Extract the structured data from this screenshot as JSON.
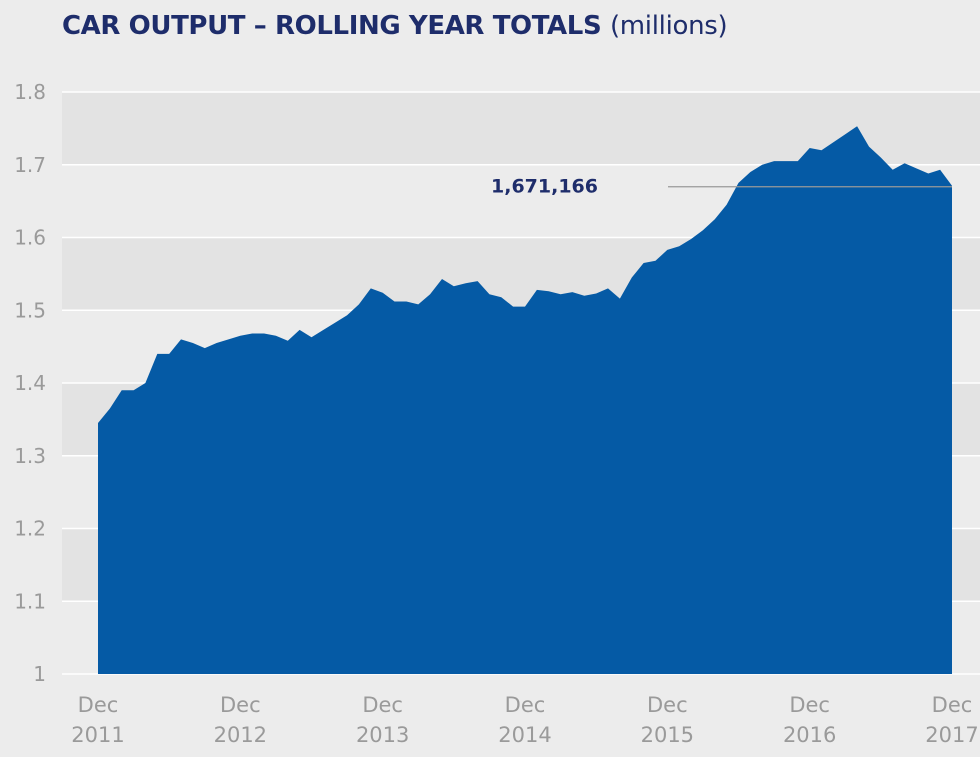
{
  "header": {
    "title": "CAR OUTPUT – ROLLING YEAR TOTALS",
    "unit": "(millions)"
  },
  "colors": {
    "area_fill": "#055aa5",
    "title": "#1e2d6b",
    "tick_text": "#9a9a9a",
    "band_dark": "#e3e3e3",
    "band_light": "#ececec",
    "grid": "#ffffff",
    "annotation_line": "#9a9a9a"
  },
  "chart_data": {
    "type": "area",
    "title": "CAR OUTPUT – ROLLING YEAR TOTALS",
    "unit": "millions",
    "xlabel": "",
    "ylabel": "",
    "ylim": [
      1,
      1.8
    ],
    "yticks": [
      1,
      1.1,
      1.2,
      1.3,
      1.4,
      1.5,
      1.6,
      1.7,
      1.8
    ],
    "ytick_labels": [
      "1",
      "1.1",
      "1.2",
      "1.3",
      "1.4",
      "1.5",
      "1.6",
      "1.7",
      "1.8"
    ],
    "xlim": [
      0,
      72
    ],
    "xticks": [
      {
        "x": 0,
        "line1": "Dec",
        "line2": "2011"
      },
      {
        "x": 12,
        "line1": "Dec",
        "line2": "2012"
      },
      {
        "x": 24,
        "line1": "Dec",
        "line2": "2013"
      },
      {
        "x": 36,
        "line1": "Dec",
        "line2": "2014"
      },
      {
        "x": 48,
        "line1": "Dec",
        "line2": "2015"
      },
      {
        "x": 60,
        "line1": "Dec",
        "line2": "2016"
      },
      {
        "x": 72,
        "line1": "Dec",
        "line2": "2017"
      }
    ],
    "grid": true,
    "background": "alternating horizontal bands",
    "series": [
      {
        "x": [
          0,
          1,
          2,
          3,
          4,
          5,
          6,
          7,
          8,
          9,
          10,
          11,
          12,
          13,
          14,
          15,
          16,
          17,
          18,
          19,
          20,
          21,
          22,
          23,
          24,
          25,
          26,
          27,
          28,
          29,
          30,
          31,
          32,
          33,
          34,
          35,
          36,
          37,
          38,
          39,
          40,
          41,
          42,
          43,
          44,
          45,
          46,
          47,
          48,
          49,
          50,
          51,
          52,
          53,
          54,
          55,
          56,
          57,
          58,
          59,
          60,
          61,
          62,
          63,
          64,
          65,
          66,
          67,
          68,
          69,
          70,
          71,
          72
        ],
        "values": [
          1.345,
          1.365,
          1.39,
          1.39,
          1.4,
          1.44,
          1.44,
          1.46,
          1.455,
          1.448,
          1.455,
          1.46,
          1.465,
          1.468,
          1.468,
          1.465,
          1.458,
          1.473,
          1.463,
          1.473,
          1.483,
          1.493,
          1.508,
          1.53,
          1.524,
          1.512,
          1.512,
          1.508,
          1.522,
          1.543,
          1.533,
          1.537,
          1.54,
          1.522,
          1.518,
          1.505,
          1.505,
          1.528,
          1.526,
          1.522,
          1.525,
          1.52,
          1.523,
          1.53,
          1.516,
          1.545,
          1.565,
          1.568,
          1.583,
          1.588,
          1.598,
          1.61,
          1.625,
          1.645,
          1.675,
          1.69,
          1.7,
          1.705,
          1.705,
          1.705,
          1.723,
          1.72,
          1.731,
          1.742,
          1.753,
          1.725,
          1.71,
          1.693,
          1.702,
          1.695,
          1.688,
          1.693,
          1.671
        ]
      }
    ],
    "annotations": [
      {
        "text": "1,671,166",
        "x": 72,
        "y": 1.671166
      }
    ]
  }
}
